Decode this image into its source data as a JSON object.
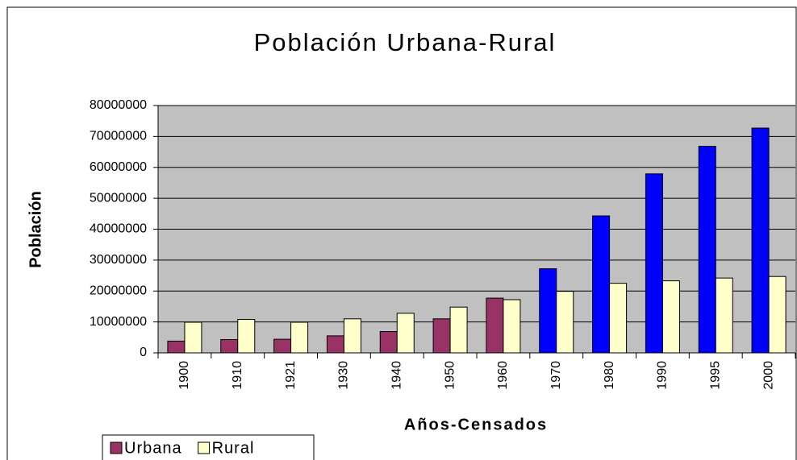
{
  "chart_data": {
    "type": "bar",
    "title": "Población Urbana-Rural",
    "x_label": "Años-Censados",
    "y_label": "Población",
    "categories": [
      "1900",
      "1910",
      "1921",
      "1930",
      "1940",
      "1950",
      "1960",
      "1970",
      "1980",
      "1990",
      "1995",
      "2000"
    ],
    "series": [
      {
        "name": "Urbana",
        "color": "#993366",
        "colors": [
          "#993366",
          "#993366",
          "#993366",
          "#993366",
          "#993366",
          "#993366",
          "#993366",
          "#0000ff",
          "#0000ff",
          "#0000ff",
          "#0000ff",
          "#0000ff"
        ],
        "values": [
          3800000,
          4300000,
          4400000,
          5500000,
          6900000,
          11000000,
          17700000,
          27200000,
          44300000,
          57900000,
          66800000,
          72700000
        ]
      },
      {
        "name": "Rural",
        "color": "#ffffcc",
        "values": [
          9900000,
          10800000,
          9900000,
          11000000,
          12800000,
          14800000,
          17200000,
          19900000,
          22500000,
          23300000,
          24200000,
          24700000
        ]
      }
    ],
    "ylim": [
      0,
      80000000
    ],
    "yticks": [
      0,
      10000000,
      20000000,
      30000000,
      40000000,
      50000000,
      60000000,
      70000000,
      80000000
    ],
    "grid": true,
    "plot_background": "#c0c0c0",
    "legend": "bottom-left"
  }
}
